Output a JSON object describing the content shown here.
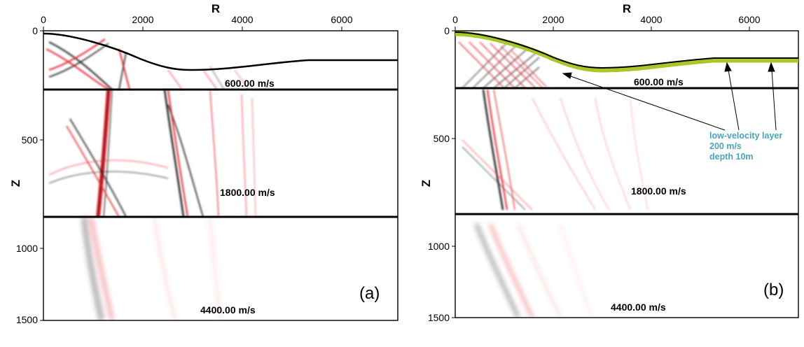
{
  "figure": {
    "panels": [
      {
        "id": "a",
        "panel_label": "(a)",
        "x_axis_title": "R",
        "y_axis_title": "Z",
        "x_ticks": [
          "0",
          "2000",
          "4000",
          "6000"
        ],
        "y_ticks": [
          "0",
          "500",
          "1000",
          "1500"
        ],
        "layer_velocities": [
          "600.00 m/s",
          "1800.00 m/s",
          "4400.00 m/s"
        ],
        "low_velocity_layer": false
      },
      {
        "id": "b",
        "panel_label": "(b)",
        "x_axis_title": "R",
        "y_axis_title": "Z",
        "x_ticks": [
          "0",
          "2000",
          "4000",
          "6000"
        ],
        "y_ticks": [
          "0",
          "500",
          "1000",
          "1500"
        ],
        "layer_velocities": [
          "600.00 m/s",
          "1800.00 m/s",
          "4400.00 m/s"
        ],
        "low_velocity_layer": true,
        "annotation": [
          "low-velocity layer",
          "200 m/s",
          "depth 10m"
        ]
      }
    ],
    "colors": {
      "wave_red": "#e0242c",
      "wave_black": "#1a1a1a",
      "interface": "#000000",
      "low_velocity_layer": "#a8c82a",
      "annotation_text": "#4aa3c0"
    }
  }
}
